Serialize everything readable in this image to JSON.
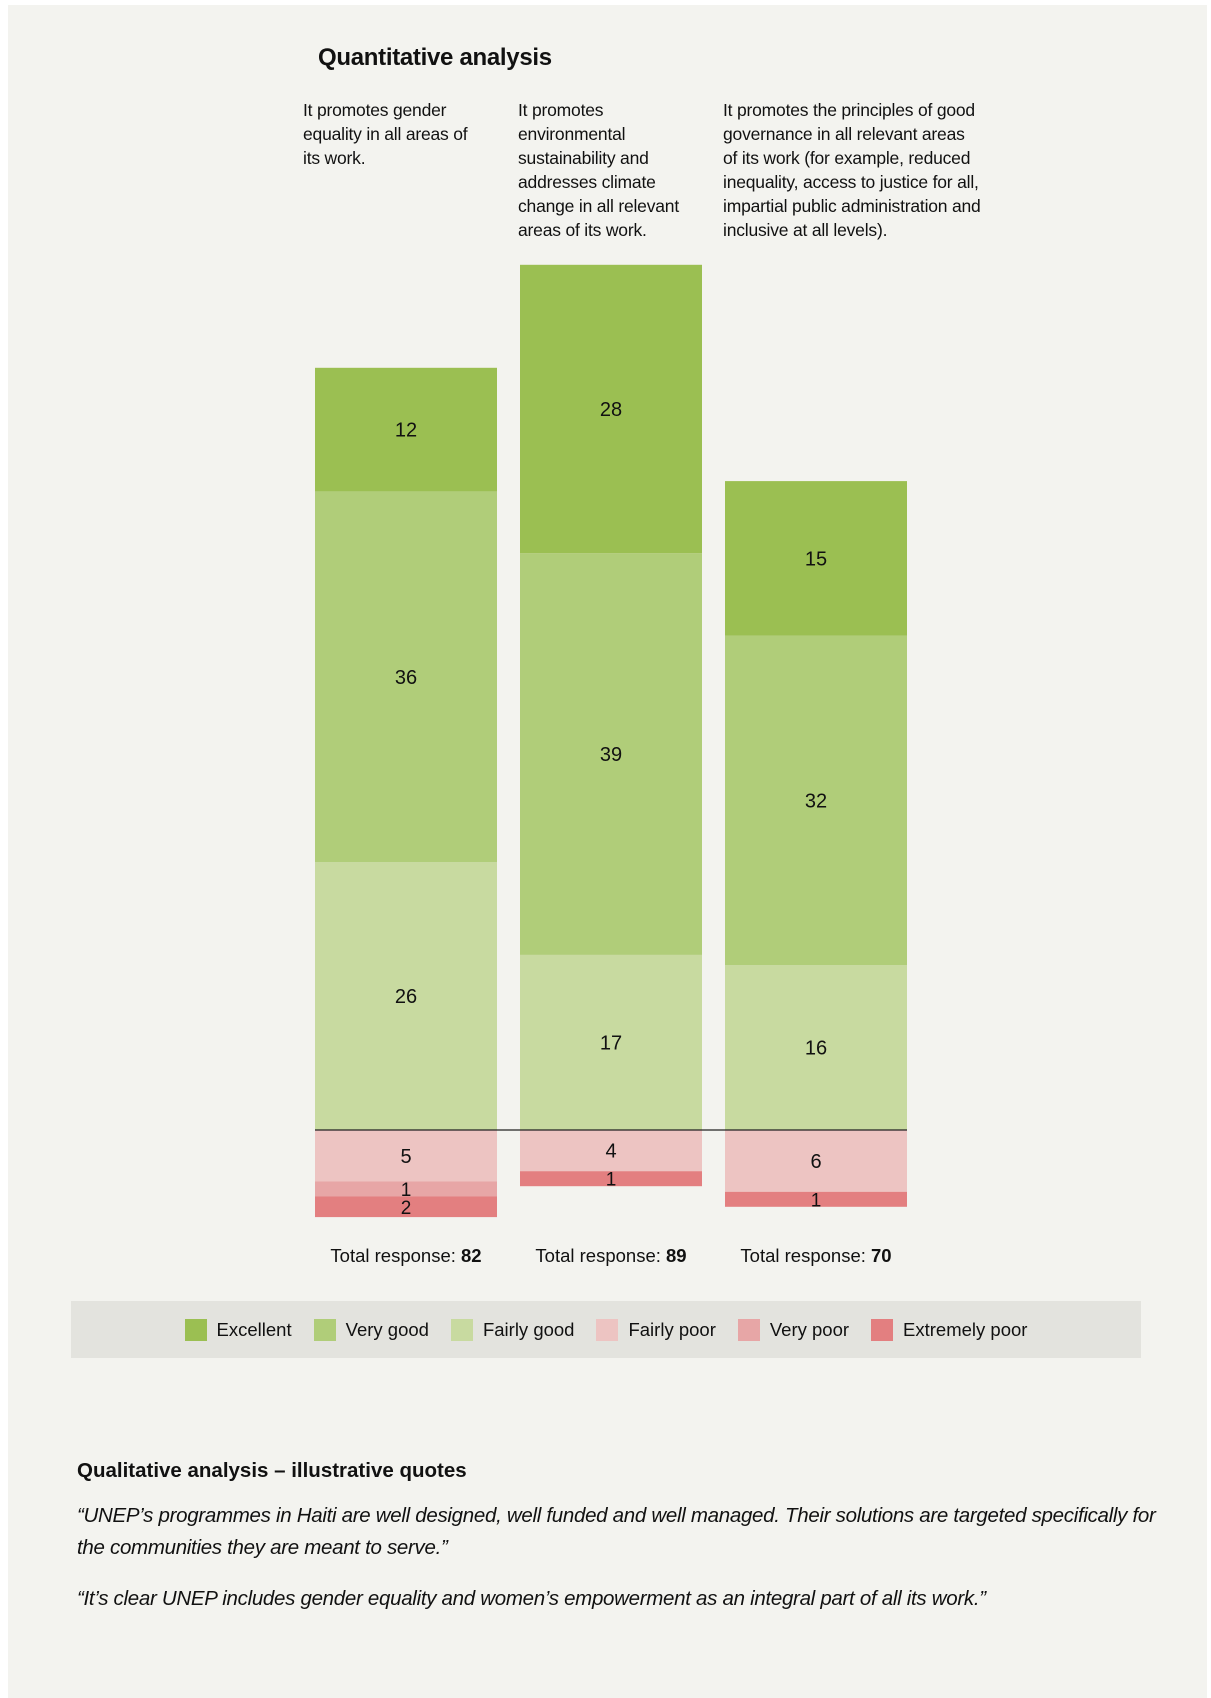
{
  "quantitative": {
    "title": "Quantitative analysis",
    "columns": [
      "It promotes gender equality in all areas of its work.",
      "It promotes environmental sustainability and addresses climate change in all relevant areas of its work.",
      "It promotes the principles of good governance in all relevant areas of its work (for example, reduced inequality, access to justice for all, impartial public administration and inclusive at all levels)."
    ]
  },
  "chart_data": {
    "type": "bar",
    "stacked": "diverging",
    "categories": [
      "Gender equality",
      "Environmental sustainability",
      "Good governance"
    ],
    "series": [
      {
        "name": "Excellent",
        "color": "#9bbf52",
        "values": [
          12,
          28,
          15
        ]
      },
      {
        "name": "Very good",
        "color": "#b0cd79",
        "values": [
          36,
          39,
          32
        ]
      },
      {
        "name": "Fairly good",
        "color": "#c8daa0",
        "values": [
          26,
          17,
          16
        ]
      },
      {
        "name": "Fairly poor",
        "color": "#edc4c2",
        "values": [
          5,
          4,
          6
        ]
      },
      {
        "name": "Very poor",
        "color": "#e7a6a6",
        "values": [
          1,
          0,
          0
        ]
      },
      {
        "name": "Extremely poor",
        "color": "#e37f80",
        "values": [
          2,
          1,
          1
        ]
      }
    ],
    "total_label": "Total response:",
    "totals": [
      82,
      89,
      70
    ],
    "legend_position": "bottom",
    "grid": false
  },
  "qualitative": {
    "title": "Qualitative analysis – illustrative quotes",
    "quotes": [
      "“UNEP’s programmes in Haiti are well designed, well funded and well managed. Their solutions are targeted specifically for the communities they are meant to serve.”",
      "“It’s clear UNEP includes gender equality and women’s empowerment as an integral part of all its work.”"
    ]
  }
}
